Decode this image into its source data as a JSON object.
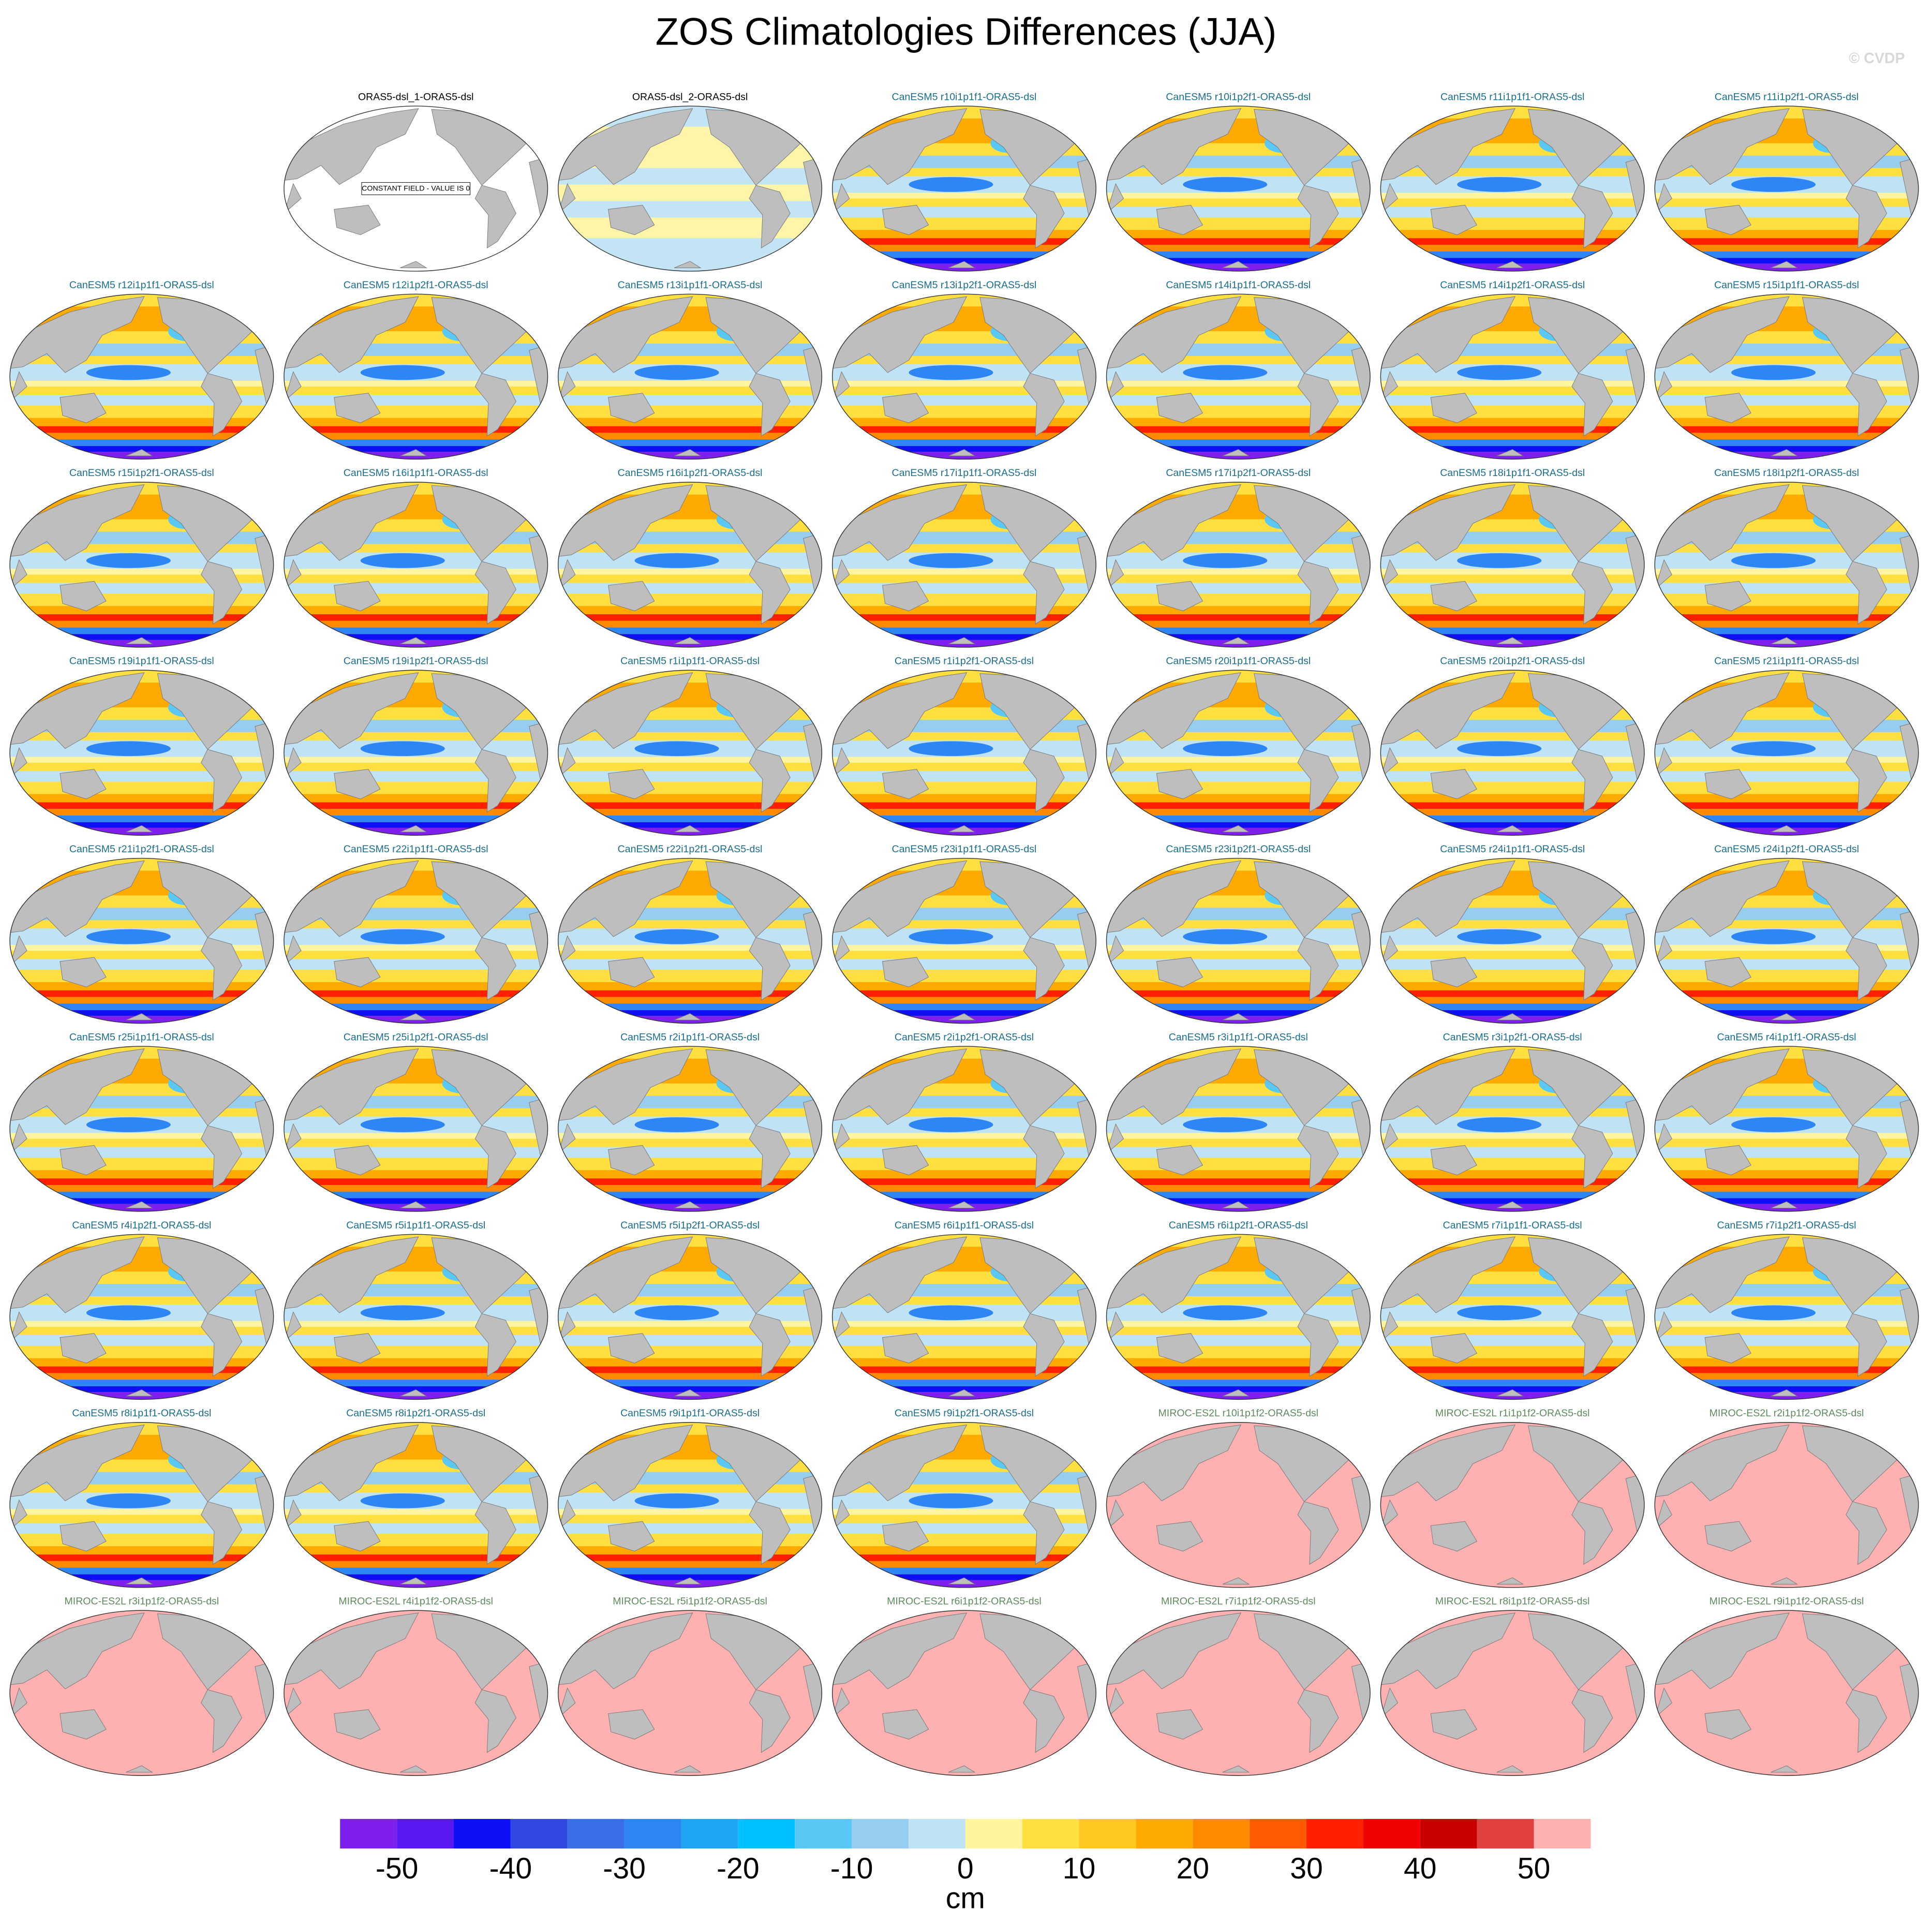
{
  "title": "ZOS Climatologies Differences (JJA)",
  "watermark": "© CVDP",
  "panels": [
    {
      "title": "ORAS5-dsl_1-ORAS5-dsl",
      "title_color": "#000000",
      "pattern": "blank",
      "note": "CONSTANT FIELD - VALUE IS 0"
    },
    {
      "title": "ORAS5-dsl_2-ORAS5-dsl",
      "title_color": "#000000",
      "pattern": "pale"
    },
    {
      "title": "CanESM5 r10i1p1f1-ORAS5-dsl",
      "title_color": "#1a6e8e",
      "pattern": "bands"
    },
    {
      "title": "CanESM5 r10i1p2f1-ORAS5-dsl",
      "title_color": "#1a6e8e",
      "pattern": "bands"
    },
    {
      "title": "CanESM5 r11i1p1f1-ORAS5-dsl",
      "title_color": "#1a6e8e",
      "pattern": "bands"
    },
    {
      "title": "CanESM5 r11i1p2f1-ORAS5-dsl",
      "title_color": "#1a6e8e",
      "pattern": "bands"
    },
    {
      "title": "CanESM5 r12i1p1f1-ORAS5-dsl",
      "title_color": "#1a6e8e",
      "pattern": "bands"
    },
    {
      "title": "CanESM5 r12i1p2f1-ORAS5-dsl",
      "title_color": "#1a6e8e",
      "pattern": "bands"
    },
    {
      "title": "CanESM5 r13i1p1f1-ORAS5-dsl",
      "title_color": "#1a6e8e",
      "pattern": "bands"
    },
    {
      "title": "CanESM5 r13i1p2f1-ORAS5-dsl",
      "title_color": "#1a6e8e",
      "pattern": "bands"
    },
    {
      "title": "CanESM5 r14i1p1f1-ORAS5-dsl",
      "title_color": "#1a6e8e",
      "pattern": "bands"
    },
    {
      "title": "CanESM5 r14i1p2f1-ORAS5-dsl",
      "title_color": "#1a6e8e",
      "pattern": "bands"
    },
    {
      "title": "CanESM5 r15i1p1f1-ORAS5-dsl",
      "title_color": "#1a6e8e",
      "pattern": "bands"
    },
    {
      "title": "CanESM5 r15i1p2f1-ORAS5-dsl",
      "title_color": "#1a6e8e",
      "pattern": "bands"
    },
    {
      "title": "CanESM5 r16i1p1f1-ORAS5-dsl",
      "title_color": "#1a6e8e",
      "pattern": "bands"
    },
    {
      "title": "CanESM5 r16i1p2f1-ORAS5-dsl",
      "title_color": "#1a6e8e",
      "pattern": "bands"
    },
    {
      "title": "CanESM5 r17i1p1f1-ORAS5-dsl",
      "title_color": "#1a6e8e",
      "pattern": "bands"
    },
    {
      "title": "CanESM5 r17i1p2f1-ORAS5-dsl",
      "title_color": "#1a6e8e",
      "pattern": "bands"
    },
    {
      "title": "CanESM5 r18i1p1f1-ORAS5-dsl",
      "title_color": "#1a6e8e",
      "pattern": "bands"
    },
    {
      "title": "CanESM5 r18i1p2f1-ORAS5-dsl",
      "title_color": "#1a6e8e",
      "pattern": "bands"
    },
    {
      "title": "CanESM5 r19i1p1f1-ORAS5-dsl",
      "title_color": "#1a6e8e",
      "pattern": "bands"
    },
    {
      "title": "CanESM5 r19i1p2f1-ORAS5-dsl",
      "title_color": "#1a6e8e",
      "pattern": "bands"
    },
    {
      "title": "CanESM5 r1i1p1f1-ORAS5-dsl",
      "title_color": "#1a6e8e",
      "pattern": "bands"
    },
    {
      "title": "CanESM5 r1i1p2f1-ORAS5-dsl",
      "title_color": "#1a6e8e",
      "pattern": "bands"
    },
    {
      "title": "CanESM5 r20i1p1f1-ORAS5-dsl",
      "title_color": "#1a6e8e",
      "pattern": "bands"
    },
    {
      "title": "CanESM5 r20i1p2f1-ORAS5-dsl",
      "title_color": "#1a6e8e",
      "pattern": "bands"
    },
    {
      "title": "CanESM5 r21i1p1f1-ORAS5-dsl",
      "title_color": "#1a6e8e",
      "pattern": "bands"
    },
    {
      "title": "CanESM5 r21i1p2f1-ORAS5-dsl",
      "title_color": "#1a6e8e",
      "pattern": "bands"
    },
    {
      "title": "CanESM5 r22i1p1f1-ORAS5-dsl",
      "title_color": "#1a6e8e",
      "pattern": "bands"
    },
    {
      "title": "CanESM5 r22i1p2f1-ORAS5-dsl",
      "title_color": "#1a6e8e",
      "pattern": "bands"
    },
    {
      "title": "CanESM5 r23i1p1f1-ORAS5-dsl",
      "title_color": "#1a6e8e",
      "pattern": "bands"
    },
    {
      "title": "CanESM5 r23i1p2f1-ORAS5-dsl",
      "title_color": "#1a6e8e",
      "pattern": "bands"
    },
    {
      "title": "CanESM5 r24i1p1f1-ORAS5-dsl",
      "title_color": "#1a6e8e",
      "pattern": "bands"
    },
    {
      "title": "CanESM5 r24i1p2f1-ORAS5-dsl",
      "title_color": "#1a6e8e",
      "pattern": "bands"
    },
    {
      "title": "CanESM5 r25i1p1f1-ORAS5-dsl",
      "title_color": "#1a6e8e",
      "pattern": "bands"
    },
    {
      "title": "CanESM5 r25i1p2f1-ORAS5-dsl",
      "title_color": "#1a6e8e",
      "pattern": "bands"
    },
    {
      "title": "CanESM5 r2i1p1f1-ORAS5-dsl",
      "title_color": "#1a6e8e",
      "pattern": "bands"
    },
    {
      "title": "CanESM5 r2i1p2f1-ORAS5-dsl",
      "title_color": "#1a6e8e",
      "pattern": "bands"
    },
    {
      "title": "CanESM5 r3i1p1f1-ORAS5-dsl",
      "title_color": "#1a6e8e",
      "pattern": "bands"
    },
    {
      "title": "CanESM5 r3i1p2f1-ORAS5-dsl",
      "title_color": "#1a6e8e",
      "pattern": "bands"
    },
    {
      "title": "CanESM5 r4i1p1f1-ORAS5-dsl",
      "title_color": "#1a6e8e",
      "pattern": "bands"
    },
    {
      "title": "CanESM5 r4i1p2f1-ORAS5-dsl",
      "title_color": "#1a6e8e",
      "pattern": "bands"
    },
    {
      "title": "CanESM5 r5i1p1f1-ORAS5-dsl",
      "title_color": "#1a6e8e",
      "pattern": "bands"
    },
    {
      "title": "CanESM5 r5i1p2f1-ORAS5-dsl",
      "title_color": "#1a6e8e",
      "pattern": "bands"
    },
    {
      "title": "CanESM5 r6i1p1f1-ORAS5-dsl",
      "title_color": "#1a6e8e",
      "pattern": "bands"
    },
    {
      "title": "CanESM5 r6i1p2f1-ORAS5-dsl",
      "title_color": "#1a6e8e",
      "pattern": "bands"
    },
    {
      "title": "CanESM5 r7i1p1f1-ORAS5-dsl",
      "title_color": "#1a6e8e",
      "pattern": "bands"
    },
    {
      "title": "CanESM5 r7i1p2f1-ORAS5-dsl",
      "title_color": "#1a6e8e",
      "pattern": "bands"
    },
    {
      "title": "CanESM5 r8i1p1f1-ORAS5-dsl",
      "title_color": "#1a6e8e",
      "pattern": "bands"
    },
    {
      "title": "CanESM5 r8i1p2f1-ORAS5-dsl",
      "title_color": "#1a6e8e",
      "pattern": "bands"
    },
    {
      "title": "CanESM5 r9i1p1f1-ORAS5-dsl",
      "title_color": "#1a6e8e",
      "pattern": "bands"
    },
    {
      "title": "CanESM5 r9i1p2f1-ORAS5-dsl",
      "title_color": "#1a6e8e",
      "pattern": "bands"
    },
    {
      "title": "MIROC-ES2L r10i1p1f2-ORAS5-dsl",
      "title_color": "#5e8a5e",
      "pattern": "pink"
    },
    {
      "title": "MIROC-ES2L r1i1p1f2-ORAS5-dsl",
      "title_color": "#5e8a5e",
      "pattern": "pink"
    },
    {
      "title": "MIROC-ES2L r2i1p1f2-ORAS5-dsl",
      "title_color": "#5e8a5e",
      "pattern": "pink"
    },
    {
      "title": "MIROC-ES2L r3i1p1f2-ORAS5-dsl",
      "title_color": "#5e8a5e",
      "pattern": "pink"
    },
    {
      "title": "MIROC-ES2L r4i1p1f2-ORAS5-dsl",
      "title_color": "#5e8a5e",
      "pattern": "pink"
    },
    {
      "title": "MIROC-ES2L r5i1p1f2-ORAS5-dsl",
      "title_color": "#5e8a5e",
      "pattern": "pink"
    },
    {
      "title": "MIROC-ES2L r6i1p1f2-ORAS5-dsl",
      "title_color": "#5e8a5e",
      "pattern": "pink"
    },
    {
      "title": "MIROC-ES2L r7i1p1f2-ORAS5-dsl",
      "title_color": "#5e8a5e",
      "pattern": "pink"
    },
    {
      "title": "MIROC-ES2L r8i1p1f2-ORAS5-dsl",
      "title_color": "#5e8a5e",
      "pattern": "pink"
    },
    {
      "title": "MIROC-ES2L r9i1p1f2-ORAS5-dsl",
      "title_color": "#5e8a5e",
      "pattern": "pink"
    }
  ],
  "colorbar": {
    "label": "cm",
    "levels": [
      -50,
      -45,
      -40,
      -35,
      -30,
      -25,
      -20,
      -15,
      -10,
      -5,
      0,
      5,
      10,
      15,
      20,
      25,
      30,
      35,
      40,
      45,
      50
    ],
    "colors": [
      "#7f1fef",
      "#5a18f0",
      "#0f0ff5",
      "#3048e0",
      "#3a6de8",
      "#2e86f5",
      "#1ea6f5",
      "#00c0ff",
      "#5ac8f5",
      "#97cdef",
      "#bfe3f5",
      "#fff5a0",
      "#ffe040",
      "#ffc820",
      "#ffaa00",
      "#ff8a00",
      "#ff5a00",
      "#ff2000",
      "#f00000",
      "#c80000",
      "#e04040",
      "#ffb0b0"
    ],
    "ticks": [
      -50,
      -40,
      -30,
      -20,
      -10,
      0,
      10,
      20,
      30,
      40,
      50
    ]
  }
}
